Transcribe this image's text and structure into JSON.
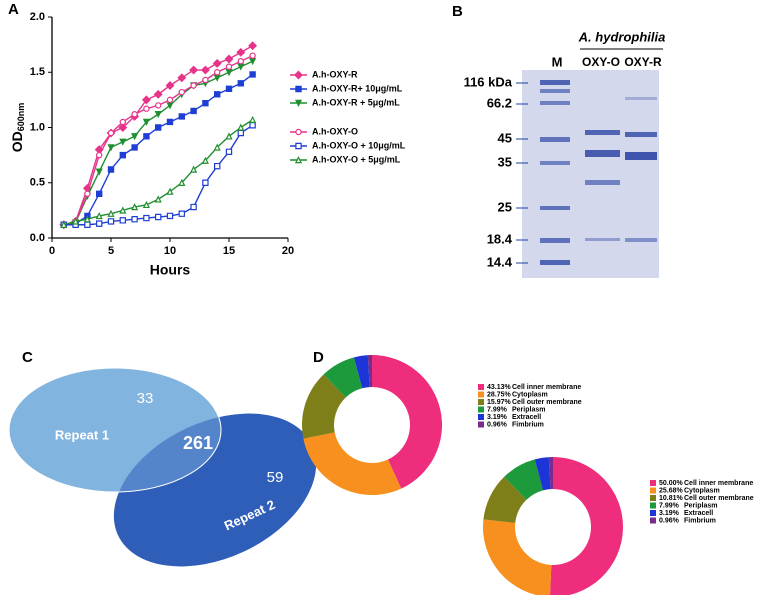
{
  "panel_labels": [
    "A",
    "B",
    "C",
    "D"
  ],
  "chart_data": [
    {
      "type": "line",
      "xlabel": "Hours",
      "ylabel": "OD",
      "ylabel_subscript": "600nm",
      "x": [
        1,
        2,
        3,
        4,
        5,
        6,
        7,
        8,
        9,
        10,
        11,
        12,
        13,
        14,
        15,
        16,
        17
      ],
      "xlim": [
        0,
        20
      ],
      "xticks": [
        0,
        5,
        10,
        15,
        20
      ],
      "ylim": [
        0,
        2
      ],
      "yticks": [
        {
          "value": 0,
          "label": "0.0"
        },
        {
          "value": 0.5,
          "label": "0.5"
        },
        {
          "value": 1,
          "label": "1.0"
        },
        {
          "value": 1.5,
          "label": "1.5"
        },
        {
          "value": 2,
          "label": "2.0"
        }
      ],
      "series": [
        {
          "name": "A.h-OXY-R",
          "color": "#e6348a",
          "marker": "diamond",
          "filled": true,
          "values": [
            0.12,
            0.15,
            0.45,
            0.8,
            0.95,
            1.0,
            1.1,
            1.25,
            1.3,
            1.38,
            1.45,
            1.52,
            1.52,
            1.58,
            1.62,
            1.68,
            1.74
          ]
        },
        {
          "name": "A.h-OXY-R+ 10μg/mL",
          "color": "#1f3fd4",
          "marker": "square",
          "filled": true,
          "values": [
            0.12,
            0.13,
            0.2,
            0.4,
            0.62,
            0.75,
            0.82,
            0.92,
            1.0,
            1.05,
            1.1,
            1.15,
            1.22,
            1.3,
            1.35,
            1.4,
            1.48
          ]
        },
        {
          "name": "A.h-OXY-R + 5μg/mL",
          "color": "#1f8f2f",
          "marker": "triangle-down",
          "filled": true,
          "values": [
            0.12,
            0.14,
            0.38,
            0.6,
            0.82,
            0.87,
            0.92,
            1.05,
            1.12,
            1.2,
            1.3,
            1.38,
            1.4,
            1.45,
            1.5,
            1.55,
            1.6
          ]
        },
        {
          "name": "A.h-OXY-O",
          "color": "#e6348a",
          "marker": "circle",
          "filled": false,
          "values": [
            0.12,
            0.15,
            0.4,
            0.75,
            0.95,
            1.05,
            1.12,
            1.17,
            1.2,
            1.25,
            1.32,
            1.38,
            1.43,
            1.5,
            1.55,
            1.6,
            1.65
          ]
        },
        {
          "name": "A.h-OXY-O + 10μg/mL",
          "color": "#1f3fd4",
          "marker": "square",
          "filled": false,
          "values": [
            0.12,
            0.12,
            0.12,
            0.13,
            0.15,
            0.16,
            0.17,
            0.18,
            0.19,
            0.2,
            0.22,
            0.28,
            0.5,
            0.65,
            0.78,
            0.95,
            1.02
          ]
        },
        {
          "name": "A.h-OXY-O + 5μg/mL",
          "color": "#1f8f2f",
          "marker": "triangle-up",
          "filled": false,
          "values": [
            0.12,
            0.15,
            0.17,
            0.2,
            0.22,
            0.25,
            0.28,
            0.3,
            0.35,
            0.42,
            0.5,
            0.62,
            0.7,
            0.82,
            0.92,
            1.0,
            1.07
          ]
        }
      ]
    },
    {
      "type": "donut",
      "categories": [
        "Cell inner membrane",
        "Cytoplasm",
        "Cell outer membrane",
        "Periplasm",
        "Extracell",
        "Fimbrium"
      ],
      "values": [
        43.13,
        28.75,
        15.97,
        7.99,
        3.19,
        0.96
      ],
      "value_labels": [
        "43.13%",
        "28.75%",
        "15.97%",
        "7.99%",
        "3.19%",
        "0.96%"
      ],
      "colors": [
        "#ee2d7c",
        "#f7901e",
        "#7f7f19",
        "#1c9a3c",
        "#1d34d6",
        "#7a2b8e"
      ]
    },
    {
      "type": "donut",
      "categories": [
        "Cell inner membrane",
        "Cytoplasm",
        "Cell outer membrane",
        "Periplasm",
        "Extracell",
        "Fimbrium"
      ],
      "values": [
        50,
        25.68,
        10.81,
        7.99,
        3.19,
        0.96
      ],
      "value_labels": [
        "50.00%",
        "25.68%",
        "10.81%",
        "7.99%",
        "3.19%",
        "0.96%"
      ],
      "colors": [
        "#ee2d7c",
        "#f7901e",
        "#7f7f19",
        "#1c9a3c",
        "#1d34d6",
        "#7a2b8e"
      ]
    }
  ],
  "gel": {
    "title": "A. hydrophilia",
    "lanes": [
      "M",
      "OXY-O",
      "OXY-R"
    ],
    "markers": [
      "116 kDa",
      "66.2",
      "45",
      "35",
      "25",
      "18.4",
      "14.4"
    ]
  },
  "venn": {
    "left_only": 33,
    "both": 261,
    "right_only": 59,
    "left_name": "Repeat 1",
    "right_name": "Repeat 2"
  }
}
